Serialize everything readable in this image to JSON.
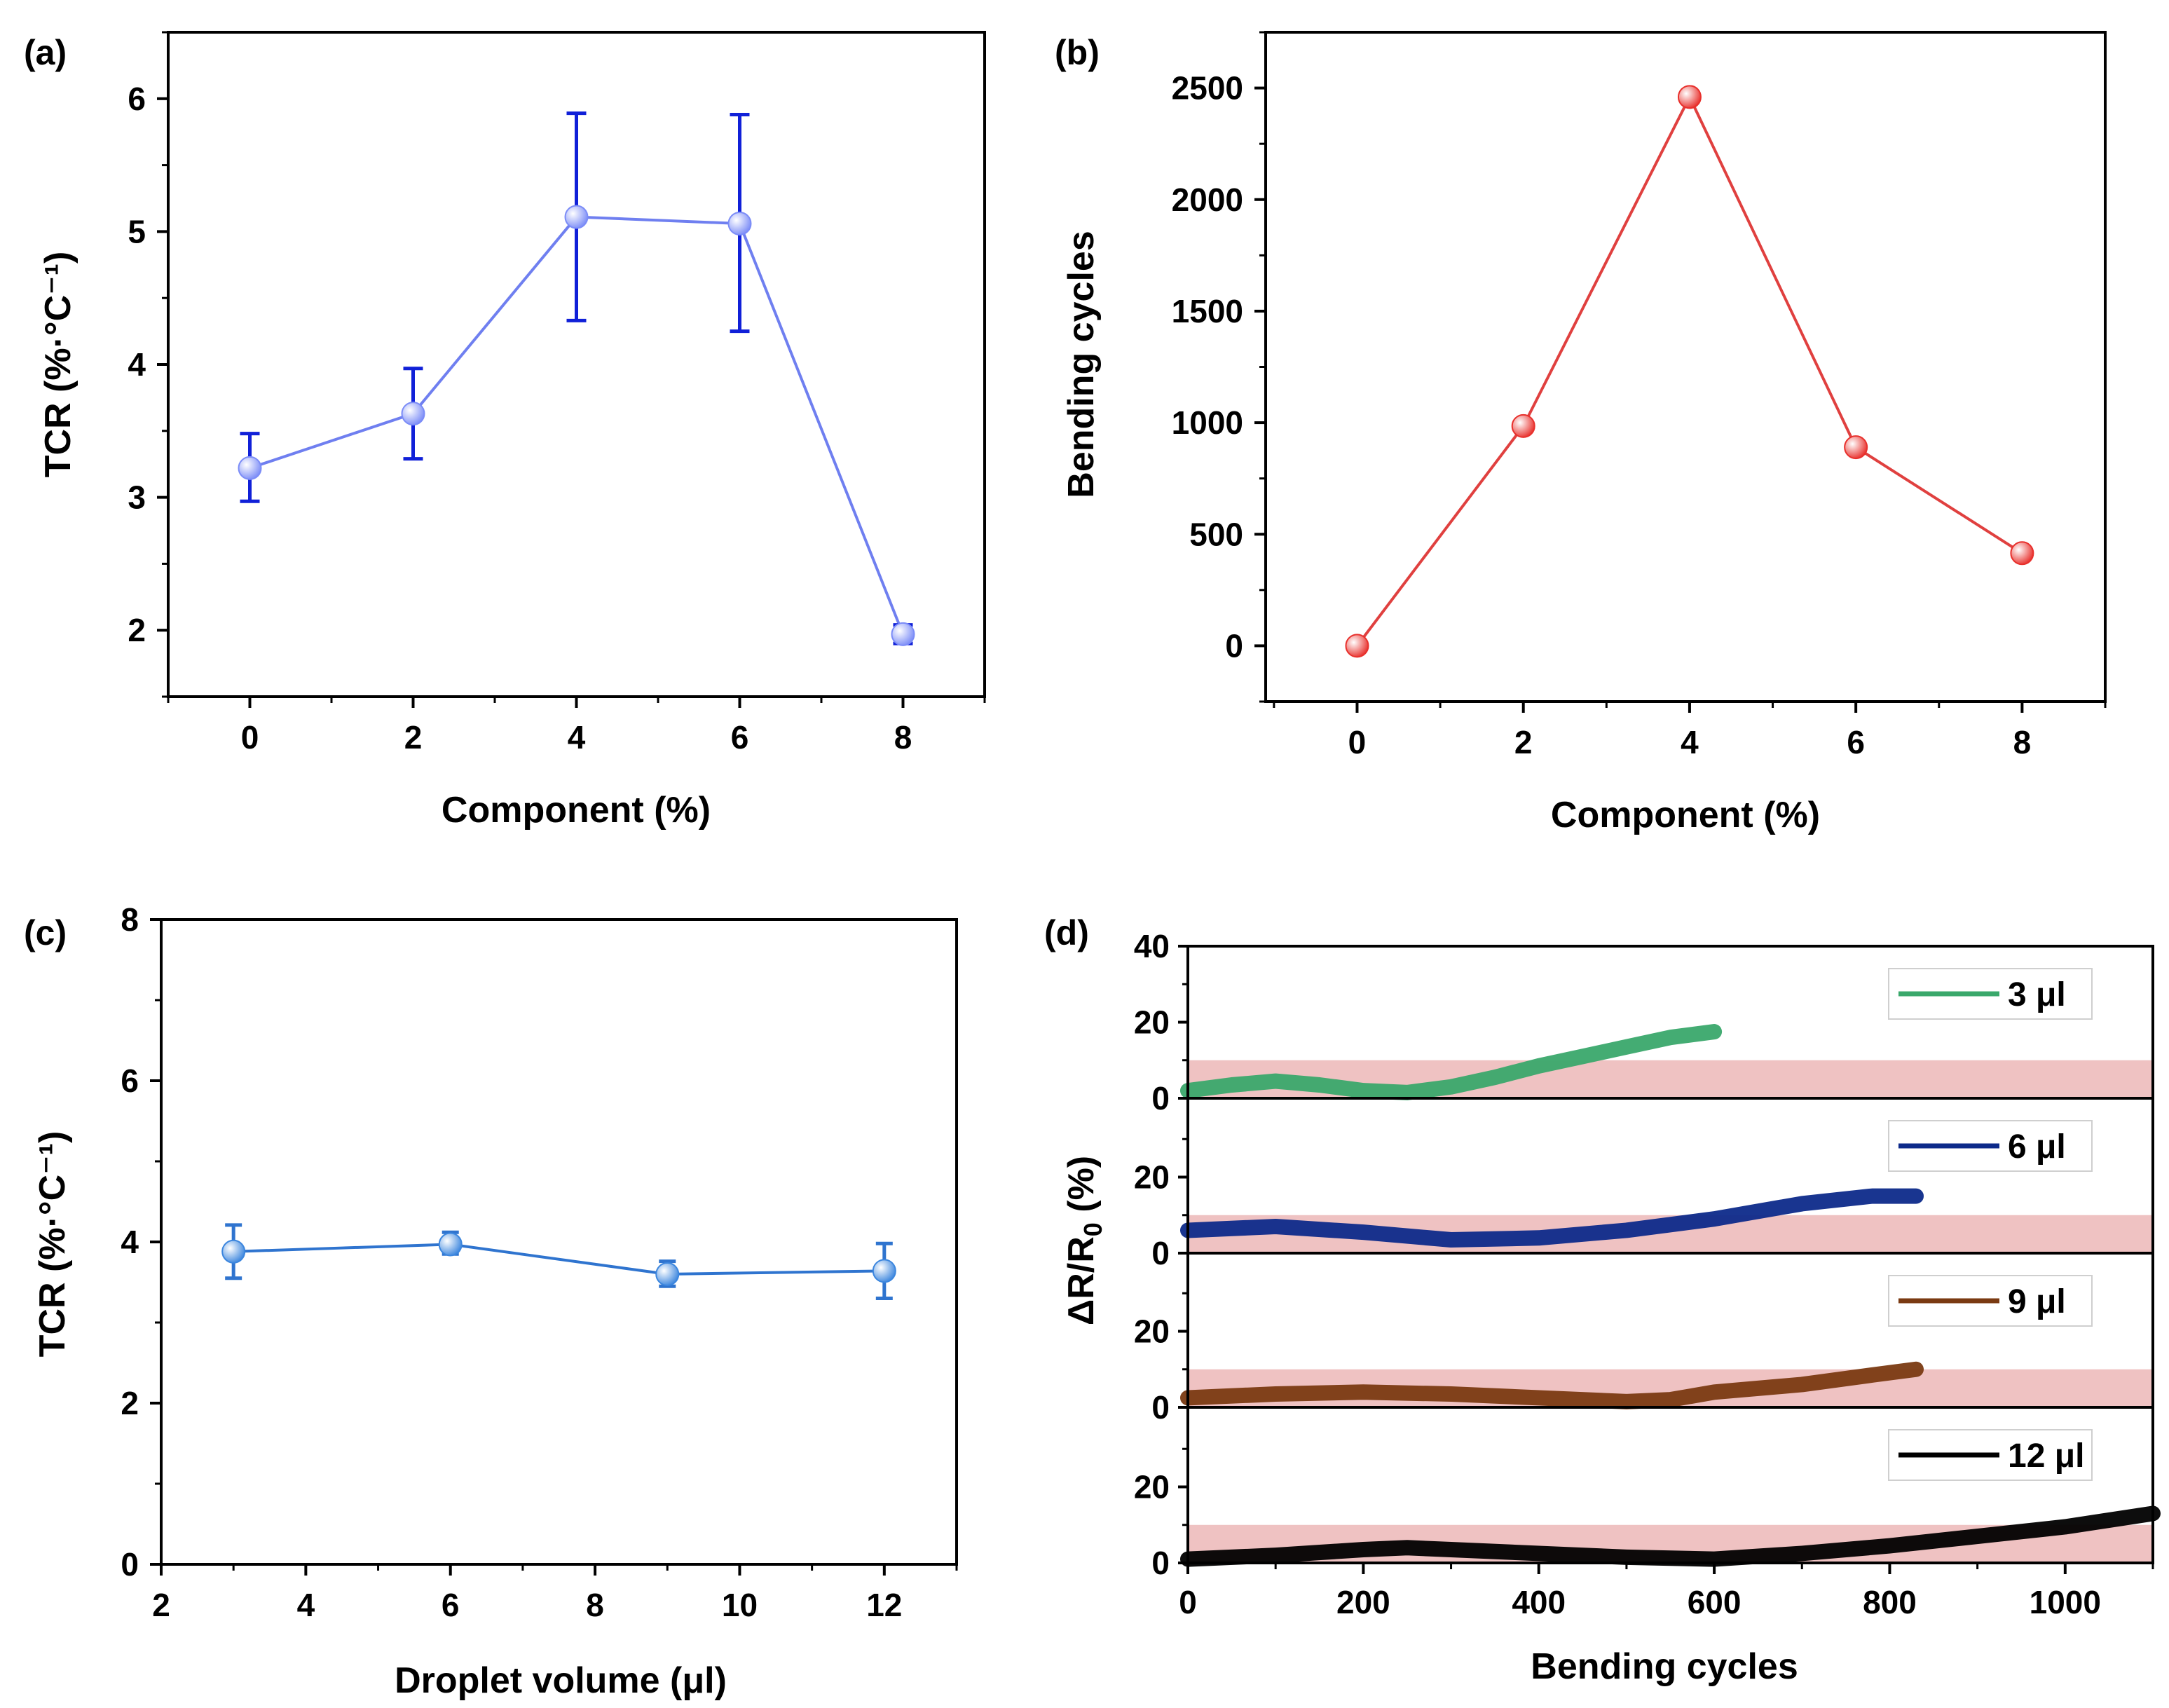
{
  "chart_data": [
    {
      "panel_label": "(a)",
      "type": "line",
      "xlabel": "Component (%)",
      "ylabel": "TCR (%·°C⁻¹)",
      "xlim": [
        -1,
        9
      ],
      "ylim": [
        1.5,
        6.5
      ],
      "xticks": [
        0,
        2,
        4,
        6,
        8
      ],
      "yticks": [
        2,
        3,
        4,
        5,
        6
      ],
      "x": [
        0,
        2,
        4,
        6,
        8
      ],
      "y": [
        3.22,
        3.63,
        5.11,
        5.06,
        1.97
      ],
      "yerr_low": [
        2.97,
        3.29,
        4.33,
        4.25,
        1.9
      ],
      "yerr_high": [
        3.48,
        3.97,
        5.89,
        5.88,
        2.04
      ],
      "line_color": "#6f7ff0",
      "marker_color": "#7b8cf7",
      "errorbar_color": "#1020d8"
    },
    {
      "panel_label": "(b)",
      "type": "line",
      "xlabel": "Component (%)",
      "ylabel": "Bending cycles",
      "xlim": [
        -1.1,
        9
      ],
      "ylim": [
        -250,
        2750
      ],
      "xticks": [
        0,
        2,
        4,
        6,
        8
      ],
      "yticks": [
        0,
        500,
        1000,
        1500,
        2000,
        2500
      ],
      "x": [
        0,
        2,
        4,
        6,
        8
      ],
      "y": [
        0,
        985,
        2460,
        890,
        415
      ],
      "line_color": "#e0403f",
      "marker_color": "#e8302c"
    },
    {
      "panel_label": "(c)",
      "type": "line",
      "xlabel": "Droplet volume (μl)",
      "ylabel": "TCR (%·°C⁻¹)",
      "xlim": [
        2,
        13
      ],
      "ylim": [
        0,
        8
      ],
      "xticks": [
        2,
        4,
        6,
        8,
        10,
        12
      ],
      "yticks": [
        0,
        2,
        4,
        6,
        8
      ],
      "x": [
        3,
        6,
        9,
        12
      ],
      "y": [
        3.88,
        3.97,
        3.6,
        3.64
      ],
      "yerr_low": [
        3.55,
        3.85,
        3.45,
        3.3
      ],
      "yerr_high": [
        4.21,
        4.12,
        3.76,
        3.98
      ],
      "line_color": "#2f74cf",
      "marker_color": "#3c86de"
    },
    {
      "panel_label": "(d)",
      "type": "line",
      "xlabel": "Bending cycles",
      "ylabel": "ΔR/R",
      "ylabel_sub": "0",
      "ylabel_suffix": " (%)",
      "xlim": [
        0,
        1100
      ],
      "xticks": [
        0,
        200,
        400,
        600,
        800,
        1000
      ],
      "ylim": [
        0,
        40
      ],
      "yticks_top": [
        0,
        20,
        40
      ],
      "yticks_lower": [
        0,
        20
      ],
      "threshold_band": [
        0,
        10
      ],
      "band_color": "#efc2c2",
      "series": [
        {
          "name": "3 μl",
          "color": "#3aa86b",
          "x": [
            0,
            50,
            100,
            150,
            200,
            250,
            300,
            350,
            400,
            450,
            500,
            550,
            600
          ],
          "y": [
            2,
            3.5,
            4.5,
            3.5,
            2,
            1.5,
            3,
            5.5,
            8.5,
            11,
            13.5,
            16,
            17.5
          ]
        },
        {
          "name": "6 μl",
          "color": "#0d2a8a",
          "x": [
            0,
            100,
            200,
            300,
            400,
            500,
            600,
            700,
            780,
            830
          ],
          "y": [
            6,
            7,
            5.5,
            3.5,
            4,
            6,
            9,
            13,
            15,
            15
          ]
        },
        {
          "name": "9 μl",
          "color": "#7a3a12",
          "x": [
            0,
            100,
            200,
            300,
            400,
            500,
            550,
            600,
            700,
            780,
            830
          ],
          "y": [
            2.5,
            3.5,
            4,
            3.5,
            2.5,
            1.5,
            2,
            4,
            6,
            8.5,
            10
          ]
        },
        {
          "name": "12 μl",
          "color": "#000000",
          "x": [
            0,
            100,
            200,
            250,
            300,
            400,
            500,
            600,
            700,
            800,
            900,
            1000,
            1100
          ],
          "y": [
            1,
            2,
            3.5,
            4,
            3.5,
            2.5,
            1.5,
            1,
            2.5,
            4.5,
            7,
            9.5,
            13
          ]
        }
      ]
    }
  ]
}
